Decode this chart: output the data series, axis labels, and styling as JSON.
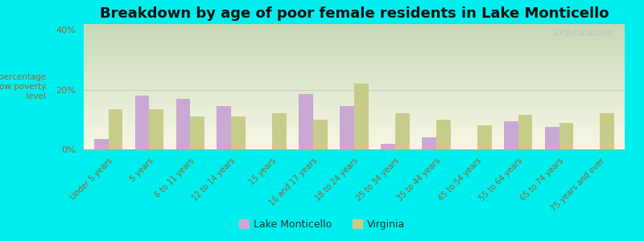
{
  "title": "Breakdown by age of poor female residents in Lake Monticello",
  "ylabel": "percentage\nbelow poverty\nlevel",
  "categories": [
    "Under 5 years",
    "5 years",
    "6 to 11 years",
    "12 to 14 years",
    "15 years",
    "16 and 17 years",
    "18 to 24 years",
    "25 to 34 years",
    "35 to 44 years",
    "45 to 54 years",
    "55 to 64 years",
    "65 to 74 years",
    "75 years and over"
  ],
  "lake_monticello": [
    3.5,
    18.0,
    17.0,
    14.5,
    0.0,
    18.5,
    14.5,
    2.0,
    4.0,
    0.0,
    9.5,
    7.5,
    0.0
  ],
  "virginia": [
    13.5,
    13.5,
    11.0,
    11.0,
    12.0,
    10.0,
    22.0,
    12.0,
    10.0,
    8.0,
    11.5,
    9.0,
    12.0
  ],
  "lake_color": "#c9a8d4",
  "virginia_color": "#c8cc8a",
  "ylim": [
    0,
    42
  ],
  "ytick_labels": [
    "0%",
    "20%",
    "40%"
  ],
  "ytick_vals": [
    0,
    20,
    40
  ],
  "outer_background": "#00eeee",
  "title_fontsize": 13,
  "bar_width": 0.35,
  "watermark": "City-Data.com"
}
